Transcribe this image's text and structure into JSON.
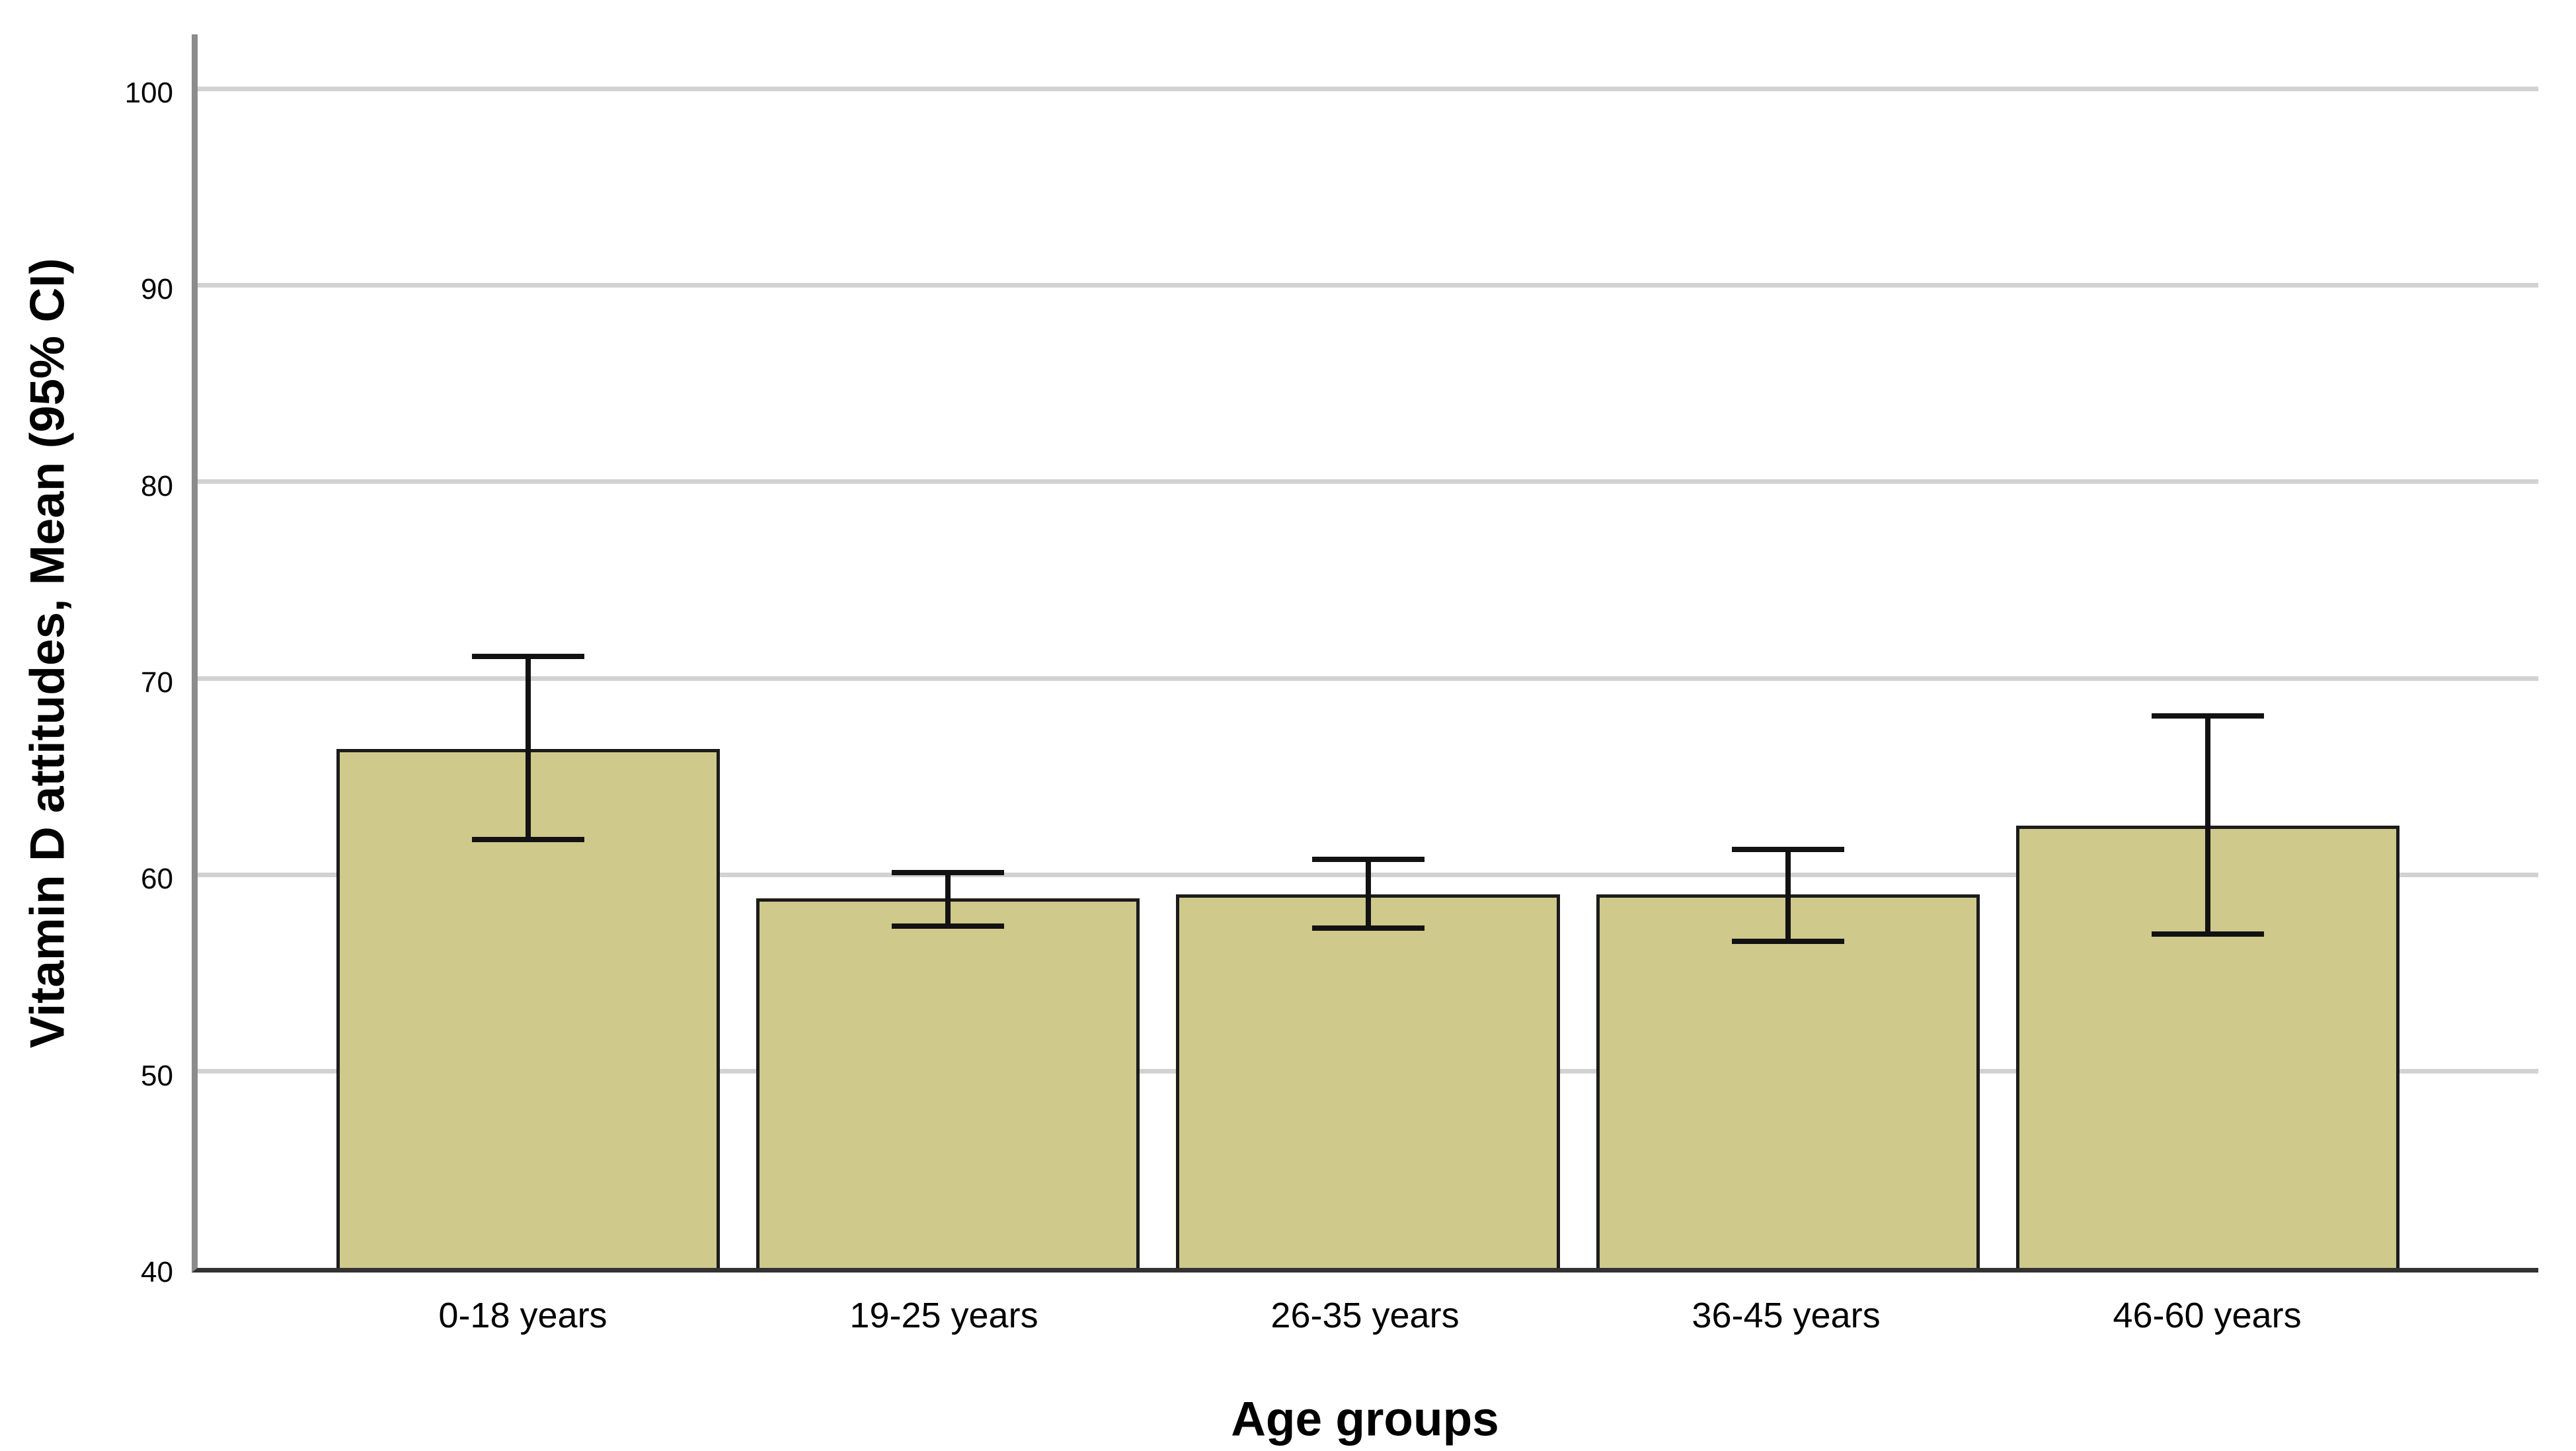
{
  "chart_data": {
    "type": "bar",
    "title": "",
    "ylabel": "Vitamin D attitudes, Mean (95% CI)",
    "xlabel": "Age groups",
    "categories": [
      "0-18 years",
      "19-25 years",
      "26-35 years",
      "36-45 years",
      "46-60 years"
    ],
    "series": [
      {
        "name": "Vitamin D attitudes, Mean",
        "values": [
          66.4,
          58.8,
          59.0,
          59.0,
          62.5
        ]
      }
    ],
    "error_bars": {
      "label": "95% CI",
      "lower": [
        61.8,
        57.4,
        57.3,
        56.6,
        57.0
      ],
      "upper": [
        71.1,
        60.1,
        60.8,
        61.3,
        68.1
      ]
    },
    "yticks": [
      40,
      50,
      60,
      70,
      80,
      90,
      100
    ],
    "ylim": [
      40,
      103
    ],
    "grid": "horizontal",
    "legend": "none"
  },
  "colors": {
    "background": "#ffffff",
    "bar_fill": "#cfc98b",
    "bar_border": "#1c1c1c",
    "error_bar": "#121212",
    "gridline": "#d2d2d2",
    "y_axis_line": "#8c8c8c",
    "x_axis_line": "#333333",
    "text": "#000000"
  }
}
